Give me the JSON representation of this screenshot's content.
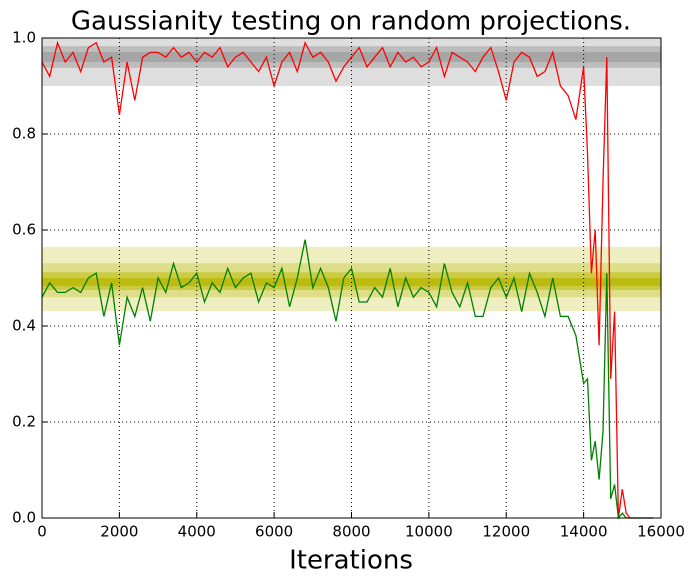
{
  "chart_data": {
    "type": "line",
    "title": "Gaussianity testing on random projections.",
    "x_label": "Iterations",
    "x": [
      0,
      200,
      400,
      600,
      800,
      1000,
      1200,
      1400,
      1600,
      1800,
      2000,
      2200,
      2400,
      2600,
      2800,
      3000,
      3200,
      3400,
      3600,
      3800,
      4000,
      4200,
      4400,
      4600,
      4800,
      5000,
      5200,
      5400,
      5600,
      5800,
      6000,
      6200,
      6400,
      6600,
      6800,
      7000,
      7200,
      7400,
      7600,
      7800,
      8000,
      8200,
      8400,
      8600,
      8800,
      9000,
      9200,
      9400,
      9600,
      9800,
      10000,
      10200,
      10400,
      10600,
      10800,
      11000,
      11200,
      11400,
      11600,
      11800,
      12000,
      12200,
      12400,
      12600,
      12800,
      13000,
      13200,
      13400,
      13600,
      13800,
      14000,
      14100,
      14200,
      14300,
      14400,
      14500,
      14600,
      14700,
      14800,
      14900,
      15000,
      15100,
      15200,
      15400,
      15600,
      15800
    ],
    "series": [
      {
        "color": "#ff0000",
        "values": [
          0.95,
          0.92,
          0.99,
          0.95,
          0.97,
          0.93,
          0.98,
          0.99,
          0.95,
          0.96,
          0.84,
          0.95,
          0.87,
          0.96,
          0.97,
          0.97,
          0.96,
          0.98,
          0.96,
          0.97,
          0.95,
          0.97,
          0.96,
          0.98,
          0.94,
          0.96,
          0.97,
          0.95,
          0.93,
          0.96,
          0.9,
          0.95,
          0.97,
          0.93,
          0.99,
          0.96,
          0.97,
          0.95,
          0.91,
          0.94,
          0.96,
          0.98,
          0.94,
          0.96,
          0.98,
          0.94,
          0.97,
          0.95,
          0.96,
          0.94,
          0.95,
          0.98,
          0.92,
          0.97,
          0.96,
          0.95,
          0.93,
          0.96,
          0.98,
          0.93,
          0.87,
          0.95,
          0.97,
          0.96,
          0.92,
          0.93,
          0.97,
          0.9,
          0.88,
          0.83,
          0.94,
          0.76,
          0.51,
          0.6,
          0.36,
          0.7,
          0.96,
          0.29,
          0.43,
          0.0,
          0.06,
          0.01,
          0.0,
          0.0,
          0.0,
          0.0
        ]
      },
      {
        "color": "#008000",
        "values": [
          0.46,
          0.49,
          0.47,
          0.47,
          0.48,
          0.47,
          0.5,
          0.51,
          0.42,
          0.49,
          0.36,
          0.46,
          0.42,
          0.48,
          0.41,
          0.5,
          0.47,
          0.53,
          0.48,
          0.49,
          0.51,
          0.45,
          0.49,
          0.47,
          0.52,
          0.48,
          0.5,
          0.51,
          0.45,
          0.49,
          0.48,
          0.52,
          0.44,
          0.5,
          0.58,
          0.48,
          0.52,
          0.48,
          0.41,
          0.5,
          0.52,
          0.45,
          0.45,
          0.48,
          0.46,
          0.52,
          0.44,
          0.5,
          0.46,
          0.48,
          0.47,
          0.44,
          0.53,
          0.47,
          0.44,
          0.49,
          0.42,
          0.42,
          0.48,
          0.5,
          0.46,
          0.5,
          0.43,
          0.51,
          0.47,
          0.42,
          0.5,
          0.42,
          0.42,
          0.38,
          0.28,
          0.29,
          0.12,
          0.16,
          0.08,
          0.18,
          0.51,
          0.04,
          0.07,
          0.0,
          0.01,
          0.0,
          0.0,
          0.0,
          0.0,
          0.0
        ]
      }
    ],
    "bands": [
      {
        "lower": 0.9,
        "upper": 1.0,
        "color": "#dedede"
      },
      {
        "lower": 0.938,
        "upper": 0.983,
        "color": "#bdbdbd"
      },
      {
        "lower": 0.95,
        "upper": 0.971,
        "color": "#a6a6a6"
      },
      {
        "lower": 0.431,
        "upper": 0.565,
        "color": "#eeeec0"
      },
      {
        "lower": 0.46,
        "upper": 0.531,
        "color": "#dede88"
      },
      {
        "lower": 0.475,
        "upper": 0.512,
        "color": "#cccc44"
      },
      {
        "lower": 0.483,
        "upper": 0.5,
        "color": "#bbbb11"
      }
    ],
    "xlim": [
      0,
      16000
    ],
    "ylim": [
      0,
      1.0
    ],
    "xticks": [
      0,
      2000,
      4000,
      6000,
      8000,
      10000,
      12000,
      14000,
      16000
    ],
    "yticks": [
      {
        "value": 0,
        "label": "0.0"
      },
      0.2,
      0.4,
      0.6,
      0.8,
      {
        "value": 1.0,
        "label": "1.0"
      }
    ],
    "grid": true
  }
}
